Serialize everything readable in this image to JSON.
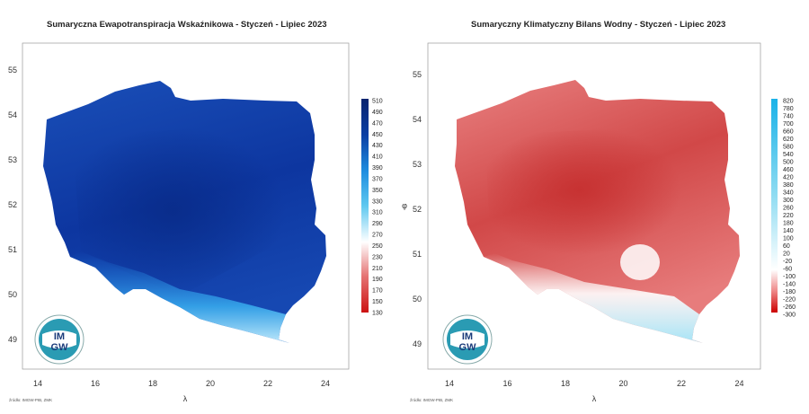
{
  "maps": [
    {
      "id": "et",
      "title": "Sumaryczna Ewapotranspiracja Wskaźnikowa - Styczeń - Lipiec 2023",
      "x_ticks": [
        "14",
        "16",
        "18",
        "20",
        "22",
        "24"
      ],
      "y_ticks": [
        "55",
        "54",
        "53",
        "52",
        "51",
        "50",
        "49"
      ],
      "x_label": "λ",
      "y_label": "",
      "source": "źródło: IMGW-PIB, ZMK",
      "logo_text": [
        "IM",
        "GW"
      ],
      "colorbar": {
        "labels": [
          "510",
          "490",
          "470",
          "450",
          "430",
          "410",
          "390",
          "370",
          "350",
          "330",
          "310",
          "290",
          "270",
          "250",
          "230",
          "210",
          "190",
          "170",
          "150",
          "130"
        ],
        "colors": [
          "#cc1111",
          "#e57373",
          "#ffffff",
          "#5ec8f0",
          "#1f8ee0",
          "#0b3fa4",
          "#08236e"
        ]
      },
      "fill_colors": [
        "#1849b4",
        "#0a2c8a"
      ]
    },
    {
      "id": "kbw",
      "title": "Sumaryczny Klimatyczny Bilans Wodny - Styczeń - Lipiec 2023",
      "x_ticks": [
        "14",
        "16",
        "18",
        "20",
        "22",
        "24"
      ],
      "y_ticks": [
        "55",
        "54",
        "53",
        "52",
        "51",
        "50",
        "49"
      ],
      "x_label": "λ",
      "y_label": "φ",
      "source": "źródło: IMGW-PIB, ZMK",
      "logo_text": [
        "IM",
        "GW"
      ],
      "colorbar": {
        "labels": [
          "820",
          "780",
          "740",
          "700",
          "660",
          "620",
          "580",
          "540",
          "500",
          "460",
          "420",
          "380",
          "340",
          "300",
          "260",
          "220",
          "180",
          "140",
          "100",
          "60",
          "20",
          "-20",
          "-60",
          "-100",
          "-140",
          "-180",
          "-220",
          "-260",
          "-300"
        ],
        "colors": [
          "#cc0000",
          "#ee8888",
          "#ffffff",
          "#8fdcf2",
          "#1ab2e8"
        ]
      },
      "fill_colors": [
        "#e06a6a",
        "#c93a3a"
      ]
    }
  ]
}
